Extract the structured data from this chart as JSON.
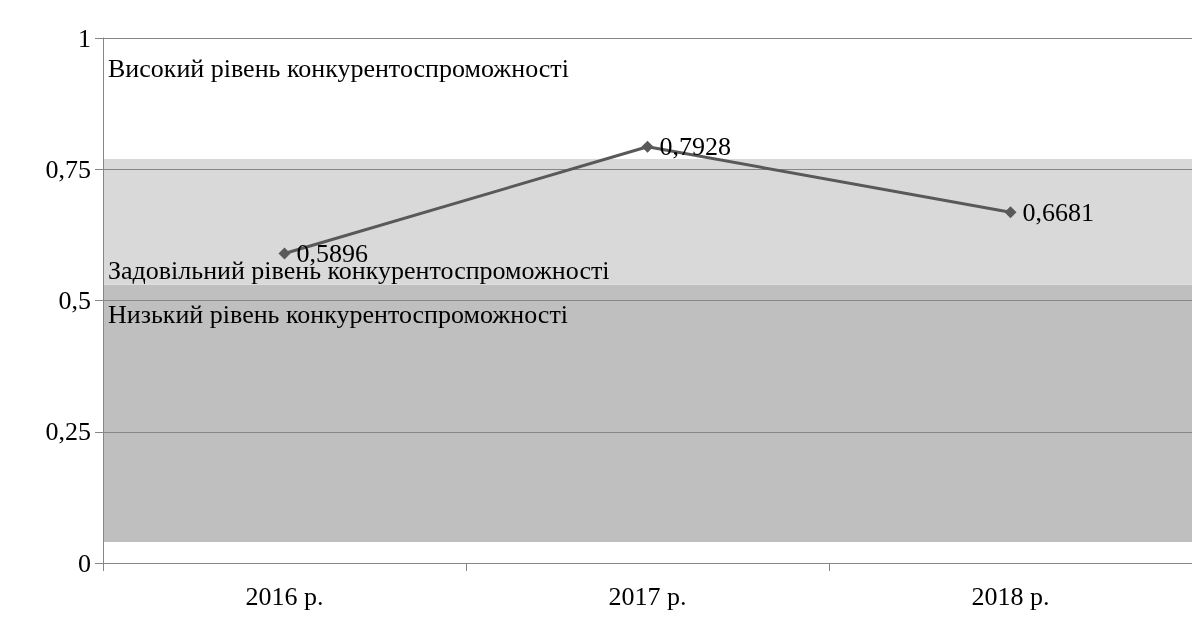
{
  "chart_data": {
    "type": "line",
    "categories": [
      "2016 р.",
      "2017 р.",
      "2018 р."
    ],
    "series": [
      {
        "color": "#595959",
        "values": [
          0.5896,
          0.7928,
          0.6681
        ],
        "value_labels": [
          "0,5896",
          "0,7928",
          "0,6681"
        ]
      }
    ],
    "ylim": [
      0,
      1
    ],
    "yticks": [
      {
        "value": 0,
        "label": "0"
      },
      {
        "value": 0.25,
        "label": "0,25"
      },
      {
        "value": 0.5,
        "label": "0,5"
      },
      {
        "value": 0.75,
        "label": "0,75"
      },
      {
        "value": 1,
        "label": "1"
      }
    ],
    "grid": "y",
    "marker": "diamond",
    "line_style": "solid",
    "bands": [
      {
        "axis": "y",
        "from": 0.04,
        "to": 0.53,
        "label": "Низький рівень конкурентоспроможності",
        "color": "#bfbfbf"
      },
      {
        "axis": "y",
        "from": 0.53,
        "to": 0.77,
        "label": "Задовільний рівень конкурентоспроможності",
        "color": "#d9d9d9"
      },
      {
        "axis": "y",
        "from": 0.77,
        "to": 1,
        "label": "Високий рівень конкурентоспроможності",
        "color": "#ffffff"
      }
    ]
  }
}
